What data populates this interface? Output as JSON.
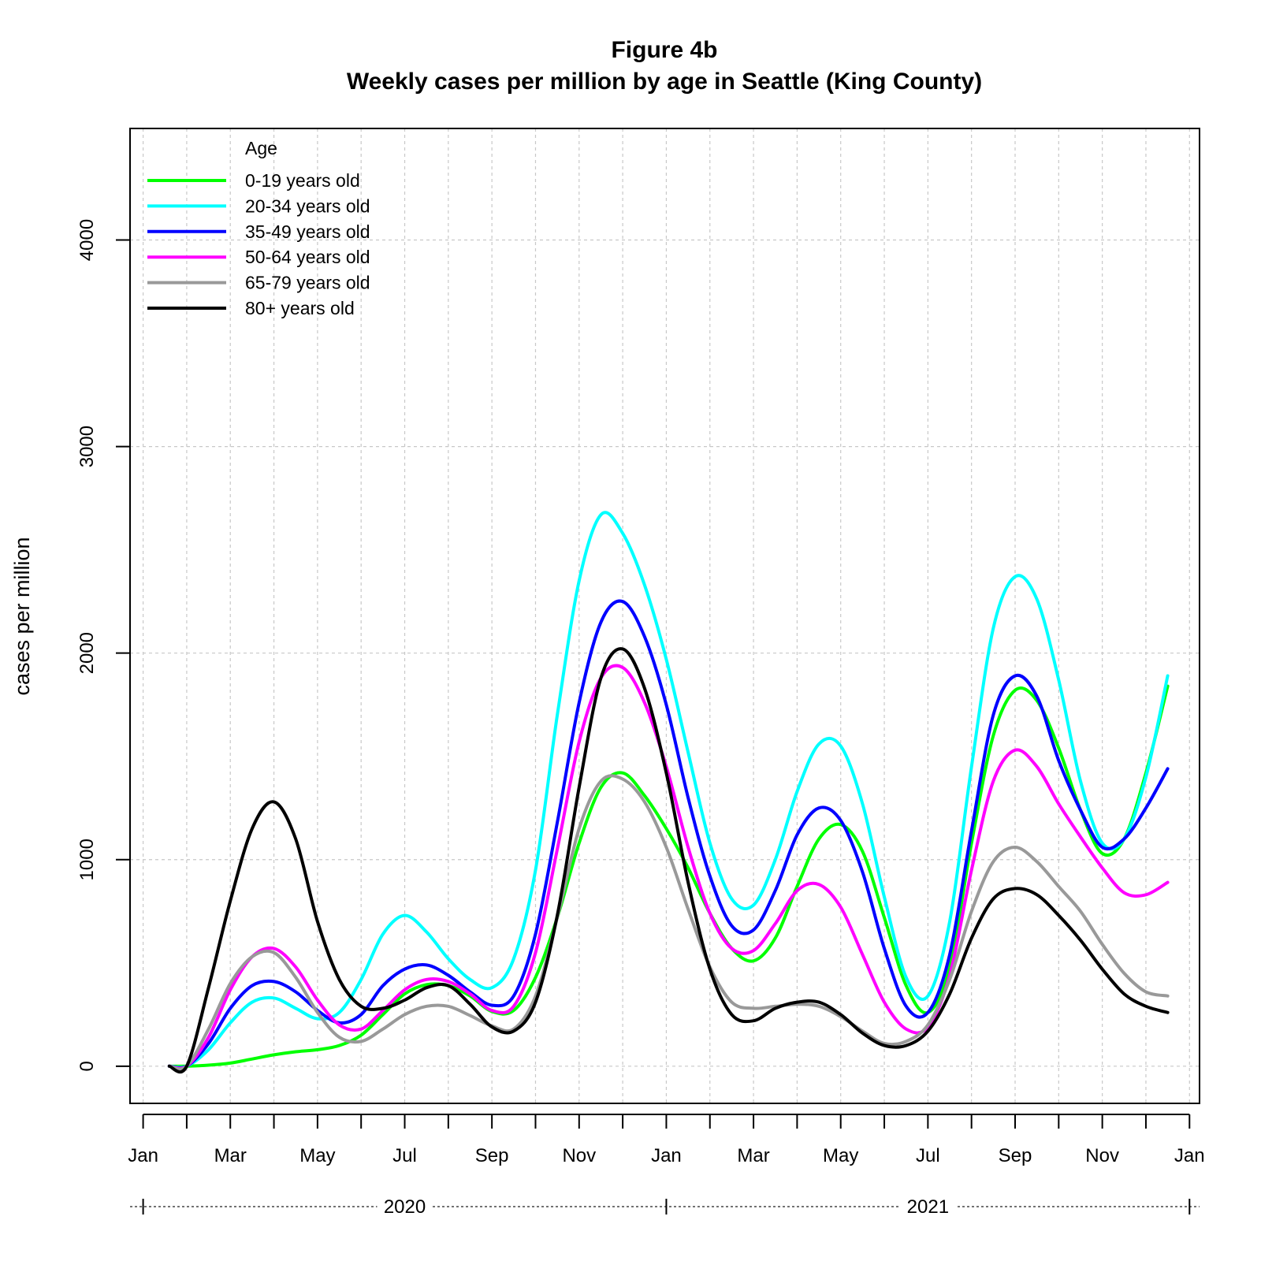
{
  "chart_data": {
    "type": "line",
    "title": "Figure 4b",
    "subtitle": "Weekly cases per million by age in Seattle (King County)",
    "xlabel": "",
    "ylabel": "cases per million",
    "ylim": [
      -180,
      4540
    ],
    "yticks": [
      0,
      1000,
      2000,
      3000,
      4000
    ],
    "x_unit": "month (0 = Jan 2020)",
    "xlim": [
      -0.3,
      24.23
    ],
    "x_ticks": [
      {
        "x": 0,
        "label": "Jan"
      },
      {
        "x": 2,
        "label": "Mar"
      },
      {
        "x": 4,
        "label": "May"
      },
      {
        "x": 6,
        "label": "Jul"
      },
      {
        "x": 8,
        "label": "Sep"
      },
      {
        "x": 10,
        "label": "Nov"
      },
      {
        "x": 12,
        "label": "Jan"
      },
      {
        "x": 14,
        "label": "Mar"
      },
      {
        "x": 16,
        "label": "May"
      },
      {
        "x": 18,
        "label": "Jul"
      },
      {
        "x": 20,
        "label": "Sep"
      },
      {
        "x": 22,
        "label": "Nov"
      },
      {
        "x": 24,
        "label": "Jan"
      }
    ],
    "x_minor_ticks": [
      1,
      3,
      5,
      7,
      9,
      11,
      13,
      15,
      17,
      19,
      21,
      23
    ],
    "year_labels": [
      {
        "x": 6,
        "label": "2020"
      },
      {
        "x": 18,
        "label": "2021"
      }
    ],
    "year_bounds": [
      0,
      12,
      24
    ],
    "grid": true,
    "legend": {
      "title": "Age",
      "position": "top-left"
    },
    "series": [
      {
        "name": "0-19 years old",
        "color": "#00ff00",
        "points": [
          [
            0.6,
            0
          ],
          [
            1,
            0
          ],
          [
            1.5,
            5
          ],
          [
            2,
            15
          ],
          [
            2.5,
            35
          ],
          [
            3,
            55
          ],
          [
            3.5,
            70
          ],
          [
            4,
            80
          ],
          [
            4.5,
            100
          ],
          [
            5,
            150
          ],
          [
            5.5,
            250
          ],
          [
            6,
            350
          ],
          [
            6.5,
            395
          ],
          [
            7,
            390
          ],
          [
            7.5,
            340
          ],
          [
            8,
            265
          ],
          [
            8.5,
            270
          ],
          [
            9,
            430
          ],
          [
            9.5,
            720
          ],
          [
            10,
            1080
          ],
          [
            10.5,
            1350
          ],
          [
            11,
            1420
          ],
          [
            11.5,
            1310
          ],
          [
            12,
            1150
          ],
          [
            12.5,
            960
          ],
          [
            13,
            740
          ],
          [
            13.5,
            570
          ],
          [
            14,
            510
          ],
          [
            14.5,
            620
          ],
          [
            15,
            870
          ],
          [
            15.5,
            1100
          ],
          [
            16,
            1170
          ],
          [
            16.5,
            1040
          ],
          [
            17,
            720
          ],
          [
            17.5,
            390
          ],
          [
            18,
            260
          ],
          [
            18.5,
            480
          ],
          [
            19,
            1080
          ],
          [
            19.5,
            1600
          ],
          [
            20,
            1820
          ],
          [
            20.5,
            1770
          ],
          [
            21,
            1540
          ],
          [
            21.5,
            1240
          ],
          [
            22,
            1030
          ],
          [
            22.5,
            1100
          ],
          [
            23,
            1420
          ],
          [
            23.5,
            1840
          ]
        ]
      },
      {
        "name": "20-34 years old",
        "color": "#00ffff",
        "points": [
          [
            0.6,
            0
          ],
          [
            1,
            0
          ],
          [
            1.5,
            80
          ],
          [
            2,
            210
          ],
          [
            2.5,
            310
          ],
          [
            3,
            330
          ],
          [
            3.5,
            280
          ],
          [
            4,
            230
          ],
          [
            4.5,
            260
          ],
          [
            5,
            420
          ],
          [
            5.5,
            640
          ],
          [
            6,
            730
          ],
          [
            6.5,
            650
          ],
          [
            7,
            520
          ],
          [
            7.5,
            420
          ],
          [
            8,
            380
          ],
          [
            8.5,
            520
          ],
          [
            9,
            950
          ],
          [
            9.5,
            1700
          ],
          [
            10,
            2350
          ],
          [
            10.5,
            2670
          ],
          [
            11,
            2580
          ],
          [
            11.5,
            2330
          ],
          [
            12,
            1970
          ],
          [
            12.5,
            1520
          ],
          [
            13,
            1080
          ],
          [
            13.5,
            810
          ],
          [
            14,
            780
          ],
          [
            14.5,
            1000
          ],
          [
            15,
            1330
          ],
          [
            15.5,
            1560
          ],
          [
            16,
            1550
          ],
          [
            16.5,
            1270
          ],
          [
            17,
            820
          ],
          [
            17.5,
            430
          ],
          [
            18,
            340
          ],
          [
            18.5,
            700
          ],
          [
            19,
            1450
          ],
          [
            19.5,
            2120
          ],
          [
            20,
            2370
          ],
          [
            20.5,
            2260
          ],
          [
            21,
            1870
          ],
          [
            21.5,
            1380
          ],
          [
            22,
            1080
          ],
          [
            22.5,
            1100
          ],
          [
            23,
            1400
          ],
          [
            23.5,
            1890
          ]
        ]
      },
      {
        "name": "35-49 years old",
        "color": "#0000ff",
        "points": [
          [
            0.6,
            0
          ],
          [
            1,
            0
          ],
          [
            1.5,
            110
          ],
          [
            2,
            280
          ],
          [
            2.5,
            390
          ],
          [
            3,
            410
          ],
          [
            3.5,
            360
          ],
          [
            4,
            270
          ],
          [
            4.5,
            210
          ],
          [
            5,
            250
          ],
          [
            5.5,
            390
          ],
          [
            6,
            470
          ],
          [
            6.5,
            490
          ],
          [
            7,
            440
          ],
          [
            7.5,
            360
          ],
          [
            8,
            295
          ],
          [
            8.5,
            340
          ],
          [
            9,
            640
          ],
          [
            9.5,
            1180
          ],
          [
            10,
            1760
          ],
          [
            10.5,
            2150
          ],
          [
            11,
            2250
          ],
          [
            11.5,
            2080
          ],
          [
            12,
            1750
          ],
          [
            12.5,
            1300
          ],
          [
            13,
            920
          ],
          [
            13.5,
            680
          ],
          [
            14,
            660
          ],
          [
            14.5,
            850
          ],
          [
            15,
            1120
          ],
          [
            15.5,
            1250
          ],
          [
            16,
            1190
          ],
          [
            16.5,
            940
          ],
          [
            17,
            570
          ],
          [
            17.5,
            290
          ],
          [
            18,
            260
          ],
          [
            18.5,
            540
          ],
          [
            19,
            1140
          ],
          [
            19.5,
            1700
          ],
          [
            20,
            1890
          ],
          [
            20.5,
            1790
          ],
          [
            21,
            1480
          ],
          [
            21.5,
            1240
          ],
          [
            22,
            1060
          ],
          [
            22.5,
            1100
          ],
          [
            23,
            1250
          ],
          [
            23.5,
            1440
          ]
        ]
      },
      {
        "name": "50-64 years old",
        "color": "#ff00ff",
        "points": [
          [
            0.6,
            0
          ],
          [
            1,
            0
          ],
          [
            1.5,
            140
          ],
          [
            2,
            370
          ],
          [
            2.5,
            530
          ],
          [
            3,
            570
          ],
          [
            3.5,
            480
          ],
          [
            4,
            320
          ],
          [
            4.5,
            200
          ],
          [
            5,
            180
          ],
          [
            5.5,
            270
          ],
          [
            6,
            370
          ],
          [
            6.5,
            420
          ],
          [
            7,
            410
          ],
          [
            7.5,
            350
          ],
          [
            8,
            270
          ],
          [
            8.5,
            290
          ],
          [
            9,
            550
          ],
          [
            9.5,
            1050
          ],
          [
            10,
            1570
          ],
          [
            10.5,
            1880
          ],
          [
            11,
            1930
          ],
          [
            11.5,
            1760
          ],
          [
            12,
            1450
          ],
          [
            12.5,
            1060
          ],
          [
            13,
            740
          ],
          [
            13.5,
            570
          ],
          [
            14,
            560
          ],
          [
            14.5,
            690
          ],
          [
            15,
            850
          ],
          [
            15.5,
            880
          ],
          [
            16,
            770
          ],
          [
            16.5,
            540
          ],
          [
            17,
            310
          ],
          [
            17.5,
            180
          ],
          [
            18,
            190
          ],
          [
            18.5,
            440
          ],
          [
            19,
            950
          ],
          [
            19.5,
            1380
          ],
          [
            20,
            1530
          ],
          [
            20.5,
            1450
          ],
          [
            21,
            1270
          ],
          [
            21.5,
            1110
          ],
          [
            22,
            960
          ],
          [
            22.5,
            840
          ],
          [
            23,
            830
          ],
          [
            23.5,
            890
          ]
        ]
      },
      {
        "name": "65-79 years old",
        "color": "#999999",
        "points": [
          [
            0.6,
            0
          ],
          [
            1,
            0
          ],
          [
            1.5,
            180
          ],
          [
            2,
            400
          ],
          [
            2.5,
            530
          ],
          [
            3,
            550
          ],
          [
            3.5,
            430
          ],
          [
            4,
            260
          ],
          [
            4.5,
            140
          ],
          [
            5,
            120
          ],
          [
            5.5,
            180
          ],
          [
            6,
            250
          ],
          [
            6.5,
            290
          ],
          [
            7,
            290
          ],
          [
            7.5,
            245
          ],
          [
            8,
            195
          ],
          [
            8.5,
            180
          ],
          [
            9,
            340
          ],
          [
            9.5,
            720
          ],
          [
            10,
            1150
          ],
          [
            10.5,
            1380
          ],
          [
            11,
            1390
          ],
          [
            11.5,
            1280
          ],
          [
            12,
            1060
          ],
          [
            12.5,
            760
          ],
          [
            13,
            480
          ],
          [
            13.5,
            310
          ],
          [
            14,
            280
          ],
          [
            14.5,
            290
          ],
          [
            15,
            300
          ],
          [
            15.5,
            290
          ],
          [
            16,
            240
          ],
          [
            16.5,
            170
          ],
          [
            17,
            110
          ],
          [
            17.5,
            120
          ],
          [
            18,
            200
          ],
          [
            18.5,
            420
          ],
          [
            19,
            750
          ],
          [
            19.5,
            990
          ],
          [
            20,
            1060
          ],
          [
            20.5,
            990
          ],
          [
            21,
            870
          ],
          [
            21.5,
            750
          ],
          [
            22,
            590
          ],
          [
            22.5,
            450
          ],
          [
            23,
            360
          ],
          [
            23.5,
            340
          ]
        ]
      },
      {
        "name": "80+ years old",
        "color": "#000000",
        "points": [
          [
            0.6,
            0
          ],
          [
            1,
            0
          ],
          [
            1.5,
            380
          ],
          [
            2,
            800
          ],
          [
            2.5,
            1150
          ],
          [
            3,
            1280
          ],
          [
            3.5,
            1100
          ],
          [
            4,
            700
          ],
          [
            4.5,
            420
          ],
          [
            5,
            290
          ],
          [
            5.5,
            280
          ],
          [
            6,
            320
          ],
          [
            6.5,
            380
          ],
          [
            7,
            390
          ],
          [
            7.5,
            300
          ],
          [
            8,
            190
          ],
          [
            8.5,
            170
          ],
          [
            9,
            310
          ],
          [
            9.5,
            730
          ],
          [
            10,
            1350
          ],
          [
            10.5,
            1880
          ],
          [
            11,
            2020
          ],
          [
            11.5,
            1830
          ],
          [
            12,
            1420
          ],
          [
            12.5,
            890
          ],
          [
            13,
            470
          ],
          [
            13.5,
            250
          ],
          [
            14,
            220
          ],
          [
            14.5,
            280
          ],
          [
            15,
            310
          ],
          [
            15.5,
            310
          ],
          [
            16,
            250
          ],
          [
            16.5,
            160
          ],
          [
            17,
            100
          ],
          [
            17.5,
            100
          ],
          [
            18,
            170
          ],
          [
            18.5,
            350
          ],
          [
            19,
            620
          ],
          [
            19.5,
            810
          ],
          [
            20,
            860
          ],
          [
            20.5,
            830
          ],
          [
            21,
            730
          ],
          [
            21.5,
            610
          ],
          [
            22,
            470
          ],
          [
            22.5,
            350
          ],
          [
            23,
            290
          ],
          [
            23.5,
            260
          ]
        ]
      }
    ]
  }
}
